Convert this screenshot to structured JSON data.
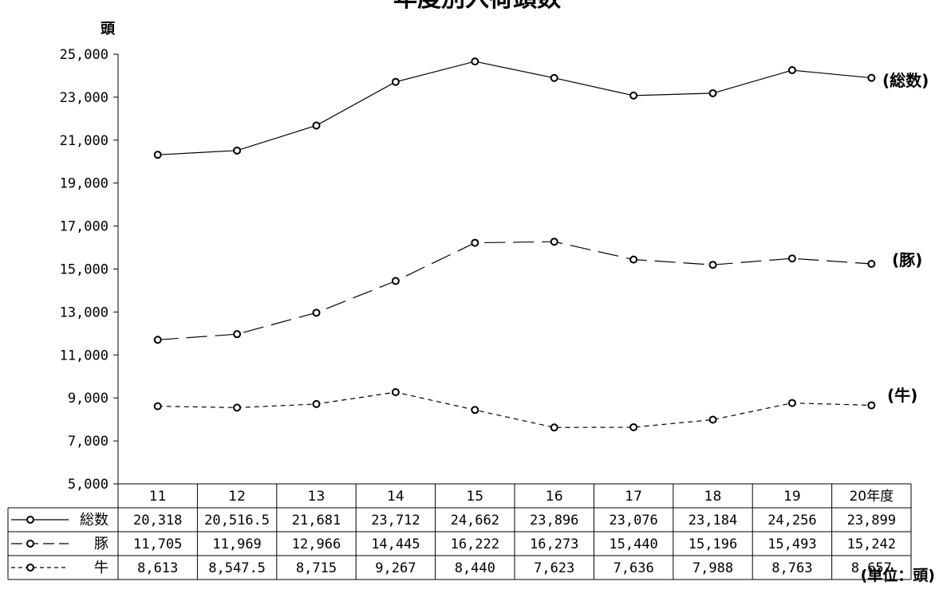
{
  "chart_data": {
    "type": "line",
    "title": "年度別入荷頭数",
    "ylabel": "頭",
    "unit_note": "(単位：頭)",
    "ylim": [
      5000,
      25000
    ],
    "yticks": [
      "25,000",
      "23,000",
      "21,000",
      "19,000",
      "17,000",
      "15,000",
      "13,000",
      "11,000",
      "9,000",
      "7,000",
      "5,000"
    ],
    "categories": [
      "11",
      "12",
      "13",
      "14",
      "15",
      "16",
      "17",
      "18",
      "19",
      "20年度"
    ],
    "series": [
      {
        "name": "総数",
        "label": "(総数)",
        "values": [
          20318,
          20516.5,
          21681,
          23712,
          24662,
          23896,
          23076,
          23184,
          24256,
          23899
        ],
        "display": [
          "20,318",
          "20,516.5",
          "21,681",
          "23,712",
          "24,662",
          "23,896",
          "23,076",
          "23,184",
          "24,256",
          "23,899"
        ],
        "dash": "none"
      },
      {
        "name": "豚",
        "label": "(豚)",
        "values": [
          11705,
          11969,
          12966,
          14445,
          16222,
          16273,
          15440,
          15196,
          15493,
          15242
        ],
        "display": [
          "11,705",
          "11,969",
          "12,966",
          "14,445",
          "16,222",
          "16,273",
          "15,440",
          "15,196",
          "15,493",
          "15,242"
        ],
        "dash": "long"
      },
      {
        "name": "牛",
        "label": "(牛)",
        "values": [
          8613,
          8547.5,
          8715,
          9267,
          8440,
          7623,
          7636,
          7988,
          8763,
          8657
        ],
        "display": [
          "8,613",
          "8,547.5",
          "8,715",
          "9,267",
          "8,440",
          "7,623",
          "7,636",
          "7,988",
          "8,763",
          "8,657"
        ],
        "dash": "short"
      }
    ]
  }
}
